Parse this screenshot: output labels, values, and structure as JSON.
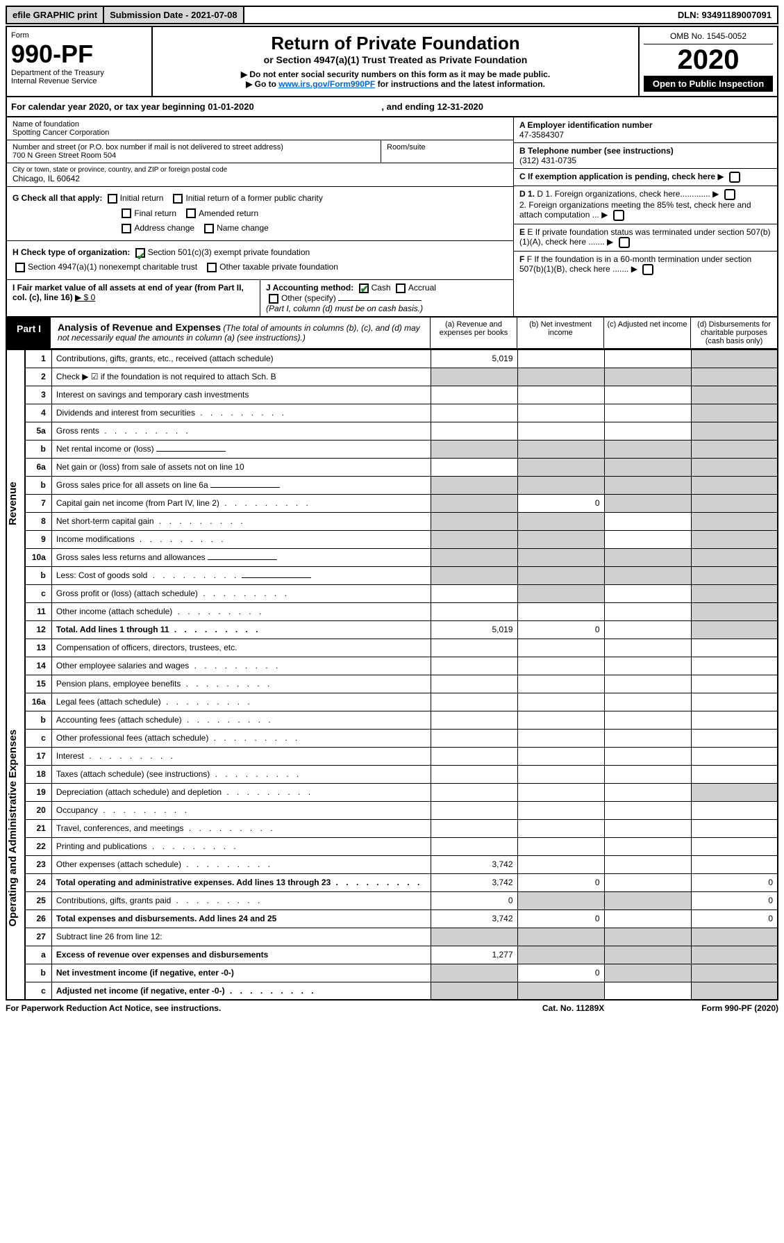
{
  "topbar": {
    "efile": "efile GRAPHIC print",
    "submission": "Submission Date - 2021-07-08",
    "dln": "DLN: 93491189007091"
  },
  "header": {
    "form_label": "Form",
    "form_number": "990-PF",
    "dept": "Department of the Treasury",
    "irs": "Internal Revenue Service",
    "title": "Return of Private Foundation",
    "subtitle": "or Section 4947(a)(1) Trust Treated as Private Foundation",
    "instr1": "▶ Do not enter social security numbers on this form as it may be made public.",
    "instr2_pre": "▶ Go to ",
    "instr2_link": "www.irs.gov/Form990PF",
    "instr2_post": " for instructions and the latest information.",
    "omb": "OMB No. 1545-0052",
    "year": "2020",
    "open": "Open to Public Inspection"
  },
  "cal": {
    "text": "For calendar year 2020, or tax year beginning 01-01-2020",
    "end": ", and ending 12-31-2020"
  },
  "id": {
    "name_lbl": "Name of foundation",
    "name": "Spotting Cancer Corporation",
    "addr_lbl": "Number and street (or P.O. box number if mail is not delivered to street address)",
    "addr": "700 N Green Street Room 504",
    "room_lbl": "Room/suite",
    "city_lbl": "City or town, state or province, country, and ZIP or foreign postal code",
    "city": "Chicago, IL  60642",
    "ein_lbl": "A Employer identification number",
    "ein": "47-3584307",
    "tel_lbl": "B Telephone number (see instructions)",
    "tel": "(312) 431-0735",
    "c_lbl": "C  If exemption application is pending, check here"
  },
  "g": {
    "label": "G Check all that apply:",
    "opts": [
      "Initial return",
      "Initial return of a former public charity",
      "Final return",
      "Amended return",
      "Address change",
      "Name change"
    ]
  },
  "h": {
    "label": "H Check type of organization:",
    "o1": "Section 501(c)(3) exempt private foundation",
    "o2": "Section 4947(a)(1) nonexempt charitable trust",
    "o3": "Other taxable private foundation"
  },
  "i": {
    "label": "I Fair market value of all assets at end of year (from Part II, col. (c), line 16)",
    "val": "▶ $  0"
  },
  "j": {
    "label": "J Accounting method:",
    "o1": "Cash",
    "o2": "Accrual",
    "o3": "Other (specify)",
    "note": "(Part I, column (d) must be on cash basis.)"
  },
  "right": {
    "d1": "D 1. Foreign organizations, check here.............",
    "d2": "2. Foreign organizations meeting the 85% test, check here and attach computation ...",
    "e": "E  If private foundation status was terminated under section 507(b)(1)(A), check here .......",
    "f": "F  If the foundation is in a 60-month termination under section 507(b)(1)(B), check here ......."
  },
  "part1": {
    "tag": "Part I",
    "title": "Analysis of Revenue and Expenses",
    "note": "(The total of amounts in columns (b), (c), and (d) may not necessarily equal the amounts in column (a) (see instructions).)",
    "cols": [
      "(a)   Revenue and expenses per books",
      "(b)  Net investment income",
      "(c)  Adjusted net income",
      "(d)  Disbursements for charitable purposes (cash basis only)"
    ]
  },
  "side": {
    "rev": "Revenue",
    "exp": "Operating and Administrative Expenses"
  },
  "rows": [
    {
      "n": "1",
      "t": "Contributions, gifts, grants, etc., received (attach schedule)",
      "a": "5,019",
      "bg": "",
      "cg": "",
      "dg": "g"
    },
    {
      "n": "2",
      "t": "Check ▶ ☑ if the foundation is not required to attach Sch. B",
      "bold_not": true,
      "a": "",
      "bg": "g",
      "cg": "g",
      "dg": "g",
      "ag": "g"
    },
    {
      "n": "3",
      "t": "Interest on savings and temporary cash investments",
      "a": "",
      "dg": "g"
    },
    {
      "n": "4",
      "t": "Dividends and interest from securities",
      "dots": true,
      "a": "",
      "dg": "g"
    },
    {
      "n": "5a",
      "t": "Gross rents",
      "dots": true,
      "a": "",
      "dg": "g"
    },
    {
      "n": "b",
      "t": "Net rental income or (loss)",
      "a": "",
      "ag": "g",
      "bg": "g",
      "cg": "g",
      "dg": "g",
      "inline": true
    },
    {
      "n": "6a",
      "t": "Net gain or (loss) from sale of assets not on line 10",
      "a": "",
      "bg": "g",
      "cg": "g",
      "dg": "g"
    },
    {
      "n": "b",
      "t": "Gross sales price for all assets on line 6a",
      "a": "",
      "ag": "g",
      "bg": "g",
      "cg": "g",
      "dg": "g",
      "inline": true
    },
    {
      "n": "7",
      "t": "Capital gain net income (from Part IV, line 2)",
      "dots": true,
      "a": "",
      "ag": "g",
      "b": "0",
      "cg": "g",
      "dg": "g"
    },
    {
      "n": "8",
      "t": "Net short-term capital gain",
      "dots": true,
      "a": "",
      "ag": "g",
      "bg": "g",
      "dg": "g"
    },
    {
      "n": "9",
      "t": "Income modifications",
      "dots": true,
      "a": "",
      "ag": "g",
      "bg": "g",
      "dg": "g"
    },
    {
      "n": "10a",
      "t": "Gross sales less returns and allowances",
      "a": "",
      "ag": "g",
      "bg": "g",
      "cg": "g",
      "dg": "g",
      "inline": true
    },
    {
      "n": "b",
      "t": "Less: Cost of goods sold",
      "dots": true,
      "a": "",
      "ag": "g",
      "bg": "g",
      "cg": "g",
      "dg": "g",
      "inline": true
    },
    {
      "n": "c",
      "t": "Gross profit or (loss) (attach schedule)",
      "dots": true,
      "a": "",
      "bg": "g",
      "dg": "g"
    },
    {
      "n": "11",
      "t": "Other income (attach schedule)",
      "dots": true,
      "a": "",
      "dg": "g"
    },
    {
      "n": "12",
      "t": "Total. Add lines 1 through 11",
      "dots": true,
      "bold": true,
      "a": "5,019",
      "b": "0",
      "dg": "g"
    },
    {
      "n": "13",
      "t": "Compensation of officers, directors, trustees, etc.",
      "a": ""
    },
    {
      "n": "14",
      "t": "Other employee salaries and wages",
      "dots": true,
      "a": ""
    },
    {
      "n": "15",
      "t": "Pension plans, employee benefits",
      "dots": true,
      "a": ""
    },
    {
      "n": "16a",
      "t": "Legal fees (attach schedule)",
      "dots": true,
      "a": ""
    },
    {
      "n": "b",
      "t": "Accounting fees (attach schedule)",
      "dots": true,
      "a": ""
    },
    {
      "n": "c",
      "t": "Other professional fees (attach schedule)",
      "dots": true,
      "a": ""
    },
    {
      "n": "17",
      "t": "Interest",
      "dots": true,
      "a": ""
    },
    {
      "n": "18",
      "t": "Taxes (attach schedule) (see instructions)",
      "dots": true,
      "a": ""
    },
    {
      "n": "19",
      "t": "Depreciation (attach schedule) and depletion",
      "dots": true,
      "a": "",
      "dg": "g"
    },
    {
      "n": "20",
      "t": "Occupancy",
      "dots": true,
      "a": ""
    },
    {
      "n": "21",
      "t": "Travel, conferences, and meetings",
      "dots": true,
      "a": ""
    },
    {
      "n": "22",
      "t": "Printing and publications",
      "dots": true,
      "a": ""
    },
    {
      "n": "23",
      "t": "Other expenses (attach schedule)",
      "dots": true,
      "a": "3,742"
    },
    {
      "n": "24",
      "t": "Total operating and administrative expenses. Add lines 13 through 23",
      "dots": true,
      "bold": true,
      "a": "3,742",
      "b": "0",
      "d": "0"
    },
    {
      "n": "25",
      "t": "Contributions, gifts, grants paid",
      "dots": true,
      "a": "0",
      "bg": "g",
      "cg": "g",
      "d": "0"
    },
    {
      "n": "26",
      "t": "Total expenses and disbursements. Add lines 24 and 25",
      "bold": true,
      "a": "3,742",
      "b": "0",
      "d": "0"
    },
    {
      "n": "27",
      "t": "Subtract line 26 from line 12:",
      "a": "",
      "ag": "g",
      "bg": "g",
      "cg": "g",
      "dg": "g"
    },
    {
      "n": "a",
      "t": "Excess of revenue over expenses and disbursements",
      "bold": true,
      "a": "1,277",
      "bg": "g",
      "cg": "g",
      "dg": "g"
    },
    {
      "n": "b",
      "t": "Net investment income (if negative, enter -0-)",
      "bold": true,
      "a": "",
      "ag": "g",
      "b": "0",
      "cg": "g",
      "dg": "g"
    },
    {
      "n": "c",
      "t": "Adjusted net income (if negative, enter -0-)",
      "dots": true,
      "bold": true,
      "a": "",
      "ag": "g",
      "bg": "g",
      "dg": "g"
    }
  ],
  "footer": {
    "left": "For Paperwork Reduction Act Notice, see instructions.",
    "mid": "Cat. No. 11289X",
    "right": "Form 990-PF (2020)"
  },
  "colors": {
    "grey": "#d0d0d0",
    "link": "#0066cc",
    "check": "#2e7d32"
  }
}
